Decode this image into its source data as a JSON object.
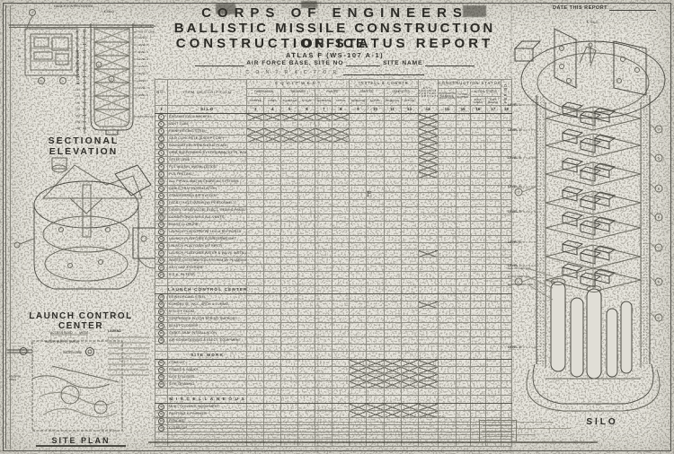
{
  "title_block": {
    "agency": "CORPS OF ENGINEERS",
    "office": "BALLISTIC MISSILE CONSTRUCTION OFFICE",
    "report": "CONSTRUCTION STATUS REPORT",
    "system": "ATLAS F (WS-107 A-1)",
    "base_label": "AIR FORCE BASE, SITE NO",
    "site_name_label": "SITE NAME",
    "contractor_label": "C O N T R A C T O R",
    "date_label": "DATE THIS REPORT"
  },
  "table": {
    "headers": {
      "no": "NO.",
      "item": "ITEM DESCRIPTION",
      "equipment": "E Q U I P M E N T",
      "install": "INSTALL  &  CONSTR",
      "fabrication": "FABRICATION",
      "received": "RECEIVED",
      "placed": "PLACED",
      "started": "STARTED",
      "completed": "COMPLETED",
      "sub_started": "STARTED",
      "sub_compl": "COMPL.",
      "schedule": "SCHEDULE",
      "actual": "ACTUAL",
      "est_percent": "EST. PERCENT CONTRACT COMPLETED",
      "construction_status": "CONSTRUCTION  STATUS",
      "contractor_schedule": "CONTRACTOR SCHEDULE NO. OF DAYS",
      "time_elapsed": "% TIME ELAPSED",
      "actual_status": "ACTUAL STATUS",
      "days_ahead": "DAYS AHEAD",
      "days_behind": "DAYS BEHIND",
      "period": "PERIOD"
    },
    "first_col_number": "1",
    "column_numbers": [
      "3",
      "4",
      "5",
      "6",
      "7",
      "8",
      "9",
      "10",
      "11",
      "12",
      "13",
      "14",
      "15",
      "16",
      "17",
      "18"
    ],
    "pencil_mark": "E",
    "sections": [
      {
        "title": "SILO",
        "rows": [
          {
            "no": "1",
            "desc": "EXCAVATION & BACKFILL",
            "hatch": [
              "eq",
              "c13"
            ]
          },
          {
            "no": "2",
            "desc": "VENT TUBE",
            "hatch": [
              "c13"
            ]
          },
          {
            "no": "3",
            "desc": "REINFORCING STEEL",
            "hatch": [
              "eq",
              "c13"
            ]
          },
          {
            "no": "4",
            "desc": "SILO CONCRETE (EXCEPT CAP)",
            "hatch": [
              "eq",
              "c13"
            ]
          },
          {
            "no": "5",
            "desc": "FOUNDATION THRESHOLD PLATE",
            "hatch": [
              "c13"
            ]
          },
          {
            "no": "6",
            "desc": "CRIB SUSPENSION SYSTEM BRACKETS, WALL BRACKET",
            "hatch": [
              "c13"
            ]
          },
          {
            "no": "7",
            "desc": "STEEL CRIB",
            "hatch": [
              "c13"
            ]
          },
          {
            "no": "8",
            "desc": "PLS VESSEL INSTALLATION",
            "hatch": [
              "c13"
            ]
          },
          {
            "no": "9",
            "desc": "PLS TESTING",
            "hatch": [
              "c13"
            ]
          },
          {
            "no": "10",
            "desc": "ALL PIPING AND MECHANICAL SYSTEMS",
            "hatch": []
          },
          {
            "no": "11",
            "desc": "CABLE TRAY INSTALLATION",
            "hatch": []
          },
          {
            "no": "12",
            "desc": "COMPRESSED AIR SYSTEM",
            "hatch": []
          },
          {
            "no": "13",
            "desc": "FACILITY ELEVATOR (W/ PERSONNEL)",
            "hatch": []
          },
          {
            "no": "14",
            "desc": "DIESEL GENERATOR, ELECT. GEAR & PANELS",
            "hatch": []
          },
          {
            "no": "15",
            "desc": "CONDITIONED AIR & ALL VENTS",
            "hatch": []
          },
          {
            "no": "16",
            "desc": "BLAST CLOSURE",
            "hatch": []
          },
          {
            "no": "17",
            "desc": "LAUNCH PLATFORM W/ LDG & SUPPORTS",
            "hatch": []
          },
          {
            "no": "18",
            "desc": "LAUNCH PLATFORM COUNTERWEIGHT",
            "hatch": []
          },
          {
            "no": "19",
            "desc": "LAUNCH PLATFORM (AT REST)",
            "hatch": []
          },
          {
            "no": "20",
            "desc": "LAUNCH PLATFORM WATER & VALVE INSTALLATION",
            "hatch": [
              "c13"
            ]
          },
          {
            "no": "21",
            "desc": "WATER DISTRIBUTION SYSTEM W/ PLUMBING",
            "hatch": []
          },
          {
            "no": "22",
            "desc": "SILO CAP & DOORS",
            "hatch": []
          },
          {
            "no": "23",
            "desc": "R.E.A. FILTERS",
            "hatch": []
          },
          {
            "no": "",
            "desc": "",
            "hatch": []
          }
        ]
      },
      {
        "title": "LAUNCH CONTROL CENTER",
        "rows": [
          {
            "no": "24",
            "desc": "REINFORCING STEEL",
            "hatch": []
          },
          {
            "no": "25",
            "desc": "CONCRETE, INCL. ARCH & TUNNEL",
            "hatch": [
              "c13"
            ]
          },
          {
            "no": "26",
            "desc": "UTILITY ROOM",
            "hatch": []
          },
          {
            "no": "27",
            "desc": "SUSPENDED FLOOR SPRING SUPPORT",
            "hatch": []
          },
          {
            "no": "28",
            "desc": "BLAST CLOSURE",
            "hatch": []
          },
          {
            "no": "29",
            "desc": "CABLE TRAY INSTALLATION",
            "hatch": []
          },
          {
            "no": "30",
            "desc": "AIR CONDITIONING & ELECT. EQUIPMENT",
            "hatch": []
          },
          {
            "no": "",
            "desc": "",
            "hatch": []
          }
        ]
      },
      {
        "title": "SITE  WORK",
        "rows": [
          {
            "no": "31",
            "desc": "CONDUIT",
            "hatch": [
              "inst"
            ]
          },
          {
            "no": "32",
            "desc": "ROADS & WALKS",
            "hatch": [
              "inst"
            ]
          },
          {
            "no": "33",
            "desc": "SITE UTILITIES",
            "hatch": [
              "inst"
            ]
          },
          {
            "no": "34",
            "desc": "SITE GRADING",
            "hatch": [
              "inst"
            ]
          },
          {
            "no": "",
            "desc": "",
            "hatch": []
          }
        ]
      },
      {
        "title": "M I S C E L L A N E O U S",
        "rows": [
          {
            "no": "35",
            "desc": "MISC. CONTROL EQUIPMENT",
            "hatch": [
              "inst"
            ]
          },
          {
            "no": "36",
            "desc": "PAINTING & FINISHES",
            "hatch": [
              "inst"
            ]
          },
          {
            "no": "37",
            "desc": "FENCING",
            "hatch": []
          },
          {
            "no": "38",
            "desc": "CLEAN UP",
            "hatch": []
          },
          {
            "no": "",
            "desc": "",
            "hatch": []
          },
          {
            "no": "",
            "desc": "",
            "hatch": []
          }
        ]
      }
    ]
  },
  "drawings": {
    "sectional_elevation": {
      "caption": "SECTIONAL ELEVATION",
      "top_label": "LAUNCH CONTROL CENTER",
      "centerline_label": "℄ SILO",
      "scale_label": "ELEVATION IN FEET",
      "scale_ticks": [
        "30",
        "40",
        "50",
        "60",
        "70",
        "80",
        "90",
        "100",
        "110",
        "120",
        "130",
        "140",
        "150",
        "160",
        "170",
        "180"
      ],
      "lcc_ticks": [
        "10",
        "20",
        "30"
      ],
      "right_labels": [
        "GRD. AT LEVEL",
        "TOP OF CRIB",
        "LEVEL 1",
        "LEVEL 2",
        "LEVEL 3",
        "LEVEL 4",
        "LEVEL 5",
        "LEVEL 6",
        "LEVEL 7",
        "LEVEL 7A",
        "LEVEL 8",
        "BOTTOM OF SILO"
      ]
    },
    "lcc": {
      "caption": "LAUNCH CONTROL CENTER"
    },
    "site_plan": {
      "caption": "SITE PLAN",
      "legend_title": "LEGEND",
      "notes": [
        "ACCESS ROAD ___ MILES",
        "WATER SUPPLY (WELL)",
        "WATER TANK"
      ]
    },
    "silo": {
      "caption": "SILO",
      "centerline_label": "℄ SILO",
      "levels": [
        "LEVEL 1",
        "LEVEL 2",
        "LEVEL 3",
        "LEVEL 4",
        "LEVEL 5",
        "LEVEL 6",
        "LEVEL 7",
        "LEVEL 8"
      ],
      "tank_notes": [
        "GAS OXYGEN CHG",
        "LIQ OXYGEN CHG",
        "GAS NITROGEN CHG"
      ]
    }
  },
  "footer": {
    "frag_left": "CONTRACTOR'S",
    "frag_mid": "THIS REPORT",
    "frag_right": "PERCENT COMPLETION"
  }
}
